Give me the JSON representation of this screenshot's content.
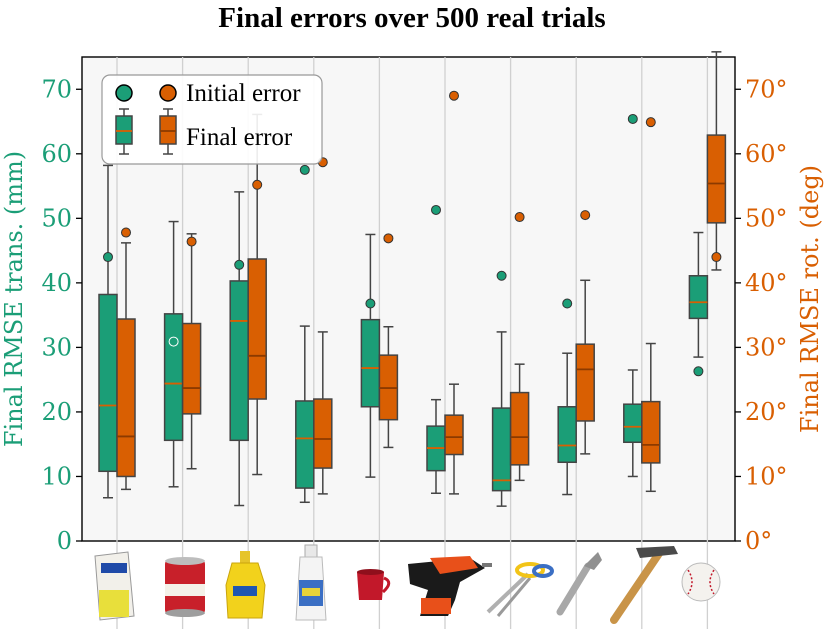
{
  "chart_data": {
    "type": "box",
    "title": "Final errors over 500 real trials",
    "ylabel_left": "Final RMSE trans. (mm)",
    "ylabel_right": "Final RMSE rot. (deg)",
    "ylim_left": [
      0,
      75
    ],
    "ylim_right": [
      0,
      75
    ],
    "yticks_left": [
      "0",
      "10",
      "20",
      "30",
      "40",
      "50",
      "60",
      "70"
    ],
    "yticks_right": [
      "0°",
      "10°",
      "20°",
      "30°",
      "40°",
      "50°",
      "60°",
      "70°"
    ],
    "grid": "vertical",
    "legend": {
      "placement": "top-left",
      "initial_label": "Initial error",
      "final_label": "Final error"
    },
    "categories": [
      "sugar box",
      "tomato soup can",
      "mustard bottle",
      "bleach cleanser",
      "mug",
      "power drill",
      "scissors",
      "adjustable wrench",
      "hammer",
      "baseball"
    ],
    "series": [
      {
        "key": "translation",
        "color": "#1b9e77",
        "boxes": [
          {
            "whislo": 6.7,
            "q1": 10.8,
            "med": 21.0,
            "q3": 38.2,
            "whishi": 58.2
          },
          {
            "whislo": 8.4,
            "q1": 15.6,
            "med": 24.4,
            "q3": 35.2,
            "whishi": 49.5
          },
          {
            "whislo": 5.5,
            "q1": 15.6,
            "med": 34.1,
            "q3": 40.3,
            "whishi": 54.1
          },
          {
            "whislo": 6.0,
            "q1": 8.2,
            "med": 15.9,
            "q3": 21.7,
            "whishi": 33.3
          },
          {
            "whislo": 9.9,
            "q1": 20.8,
            "med": 26.8,
            "q3": 34.3,
            "whishi": 47.5
          },
          {
            "whislo": 7.4,
            "q1": 10.9,
            "med": 14.4,
            "q3": 17.8,
            "whishi": 21.9
          },
          {
            "whislo": 5.4,
            "q1": 7.8,
            "med": 9.4,
            "q3": 20.6,
            "whishi": 32.4
          },
          {
            "whislo": 7.2,
            "q1": 12.2,
            "med": 14.8,
            "q3": 20.8,
            "whishi": 29.1
          },
          {
            "whislo": 10.0,
            "q1": 15.3,
            "med": 17.7,
            "q3": 21.2,
            "whishi": 26.5
          },
          {
            "whislo": 28.5,
            "q1": 34.5,
            "med": 37.0,
            "q3": 41.1,
            "whishi": 47.8
          }
        ],
        "initial": [
          44.0,
          30.9,
          42.8,
          57.5,
          36.8,
          51.3,
          41.1,
          36.8,
          65.4,
          26.3
        ]
      },
      {
        "key": "rotation",
        "color": "#d95f02",
        "boxes": [
          {
            "whislo": 8.0,
            "q1": 10.0,
            "med": 16.2,
            "q3": 34.4,
            "whishi": 46.2
          },
          {
            "whislo": 11.2,
            "q1": 19.7,
            "med": 23.7,
            "q3": 33.7,
            "whishi": 47.6
          },
          {
            "whislo": 10.3,
            "q1": 22.0,
            "med": 28.7,
            "q3": 43.7,
            "whishi": 66.1
          },
          {
            "whislo": 7.3,
            "q1": 11.3,
            "med": 15.8,
            "q3": 22.0,
            "whishi": 32.4
          },
          {
            "whislo": 14.5,
            "q1": 18.8,
            "med": 23.7,
            "q3": 28.8,
            "whishi": 33.2
          },
          {
            "whislo": 7.3,
            "q1": 13.4,
            "med": 16.1,
            "q3": 19.5,
            "whishi": 24.3
          },
          {
            "whislo": 9.4,
            "q1": 11.8,
            "med": 16.1,
            "q3": 23.0,
            "whishi": 27.4
          },
          {
            "whislo": 13.5,
            "q1": 18.6,
            "med": 26.6,
            "q3": 30.5,
            "whishi": 40.4
          },
          {
            "whislo": 7.7,
            "q1": 12.1,
            "med": 14.9,
            "q3": 21.6,
            "whishi": 30.6
          },
          {
            "whislo": 42.0,
            "q1": 49.3,
            "med": 55.4,
            "q3": 62.9,
            "whishi": 75.8
          }
        ],
        "initial": [
          47.8,
          46.4,
          55.2,
          58.7,
          46.9,
          69.0,
          50.2,
          50.5,
          64.9,
          44.0
        ]
      }
    ]
  }
}
